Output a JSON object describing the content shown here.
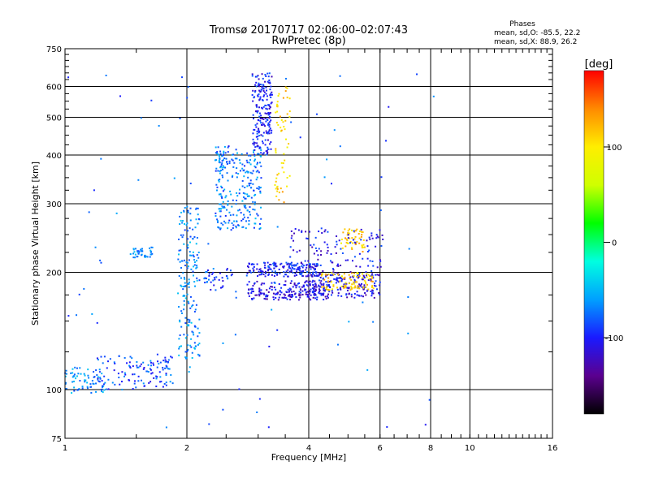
{
  "header": {
    "title_line1": "Tromsø 20170717 02:06:00–02:07:43",
    "title_line2": "RwPretec (8p)"
  },
  "phases": {
    "title": "Phases",
    "line_o": "mean, sd,O: -85.5, 22.2",
    "line_x": "mean, sd,X:  88.9, 26.2"
  },
  "chart_data": {
    "type": "scatter",
    "xlabel": "Frequency [MHz]",
    "ylabel": "Stationary phase Virtual Height [km]",
    "xscale": "log",
    "yscale": "log",
    "xlim": [
      1,
      16
    ],
    "ylim": [
      75,
      750
    ],
    "x_ticks": [
      1,
      2,
      4,
      6,
      8,
      10,
      16
    ],
    "x_tick_labels": [
      "1",
      "2",
      "4",
      "6",
      "8",
      "10",
      "16"
    ],
    "y_ticks": [
      75,
      100,
      200,
      300,
      400,
      500,
      600,
      750
    ],
    "y_tick_labels": [
      "75",
      "100",
      "200",
      "300",
      "400",
      "500",
      "600",
      "750"
    ],
    "grid": true,
    "colorbar": {
      "label": "[deg]",
      "range": [
        -180,
        180
      ],
      "tick_values": [
        100,
        0,
        -100
      ],
      "tick_labels": [
        "100",
        "0",
        "-100"
      ],
      "colors": [
        "#000000",
        "#5b008f",
        "#1a1aff",
        "#00a0ff",
        "#00ffe0",
        "#00ff00",
        "#d0ff00",
        "#ffee00",
        "#ff8a00",
        "#ff0000"
      ]
    },
    "clusters": [
      {
        "x0": 1.0,
        "x1": 1.25,
        "y0": 98,
        "y1": 114,
        "phase": -65,
        "n": 70
      },
      {
        "x0": 1.2,
        "x1": 1.85,
        "y0": 100,
        "y1": 122,
        "phase": -85,
        "n": 120
      },
      {
        "x0": 1.45,
        "x1": 1.65,
        "y0": 218,
        "y1": 232,
        "phase": -70,
        "n": 40
      },
      {
        "x0": 1.9,
        "x1": 2.15,
        "y0": 120,
        "y1": 300,
        "phase": -65,
        "n": 180
      },
      {
        "x0": 2.2,
        "x1": 2.6,
        "y0": 180,
        "y1": 205,
        "phase": -90,
        "n": 40
      },
      {
        "x0": 2.35,
        "x1": 3.05,
        "y0": 255,
        "y1": 420,
        "phase": -70,
        "n": 260
      },
      {
        "x0": 2.9,
        "x1": 3.25,
        "y0": 400,
        "y1": 650,
        "phase": -100,
        "n": 200
      },
      {
        "x0": 3.3,
        "x1": 3.6,
        "y0": 300,
        "y1": 620,
        "phase": 110,
        "n": 60
      },
      {
        "x0": 2.8,
        "x1": 4.2,
        "y0": 195,
        "y1": 212,
        "phase": -100,
        "n": 180
      },
      {
        "x0": 2.8,
        "x1": 4.5,
        "y0": 170,
        "y1": 190,
        "phase": -110,
        "n": 200
      },
      {
        "x0": 4.0,
        "x1": 6.0,
        "y0": 172,
        "y1": 200,
        "phase": -110,
        "n": 180
      },
      {
        "x0": 4.3,
        "x1": 5.8,
        "y0": 180,
        "y1": 200,
        "phase": 110,
        "n": 90
      },
      {
        "x0": 4.8,
        "x1": 5.5,
        "y0": 225,
        "y1": 260,
        "phase": 110,
        "n": 50
      },
      {
        "x0": 3.6,
        "x1": 6.1,
        "y0": 200,
        "y1": 260,
        "phase": -105,
        "n": 120
      },
      {
        "x0": 1.0,
        "x1": 8.5,
        "y0": 80,
        "y1": 650,
        "phase": -80,
        "n": 90
      }
    ]
  }
}
